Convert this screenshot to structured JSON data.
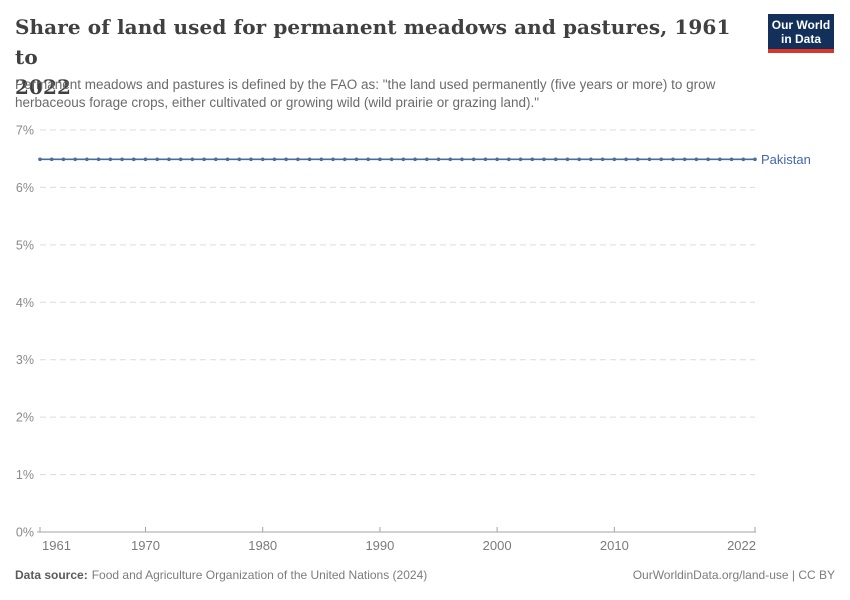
{
  "header": {
    "title_lines": [
      "Share of land used for permanent meadows and pastures, 1961 to",
      "2022"
    ],
    "subtitle_lines": [
      "Permanent meadows and pastures is defined by the FAO as: \"the land used permanently (five years or more) to grow",
      "herbaceous forage crops, either cultivated or growing wild (wild prairie or grazing land).\""
    ]
  },
  "logo": {
    "line1": "Our World",
    "line2": "in Data",
    "bg_color": "#12305a",
    "accent_color": "#dc3426"
  },
  "chart_data": {
    "type": "line",
    "title": "Share of land used for permanent meadows and pastures, 1961 to 2022",
    "xlabel": "",
    "ylabel": "",
    "ylim": [
      0,
      7
    ],
    "grid": "horizontal-dashed",
    "legend_position": "right-of-line-end",
    "x": [
      1961,
      1962,
      1963,
      1964,
      1965,
      1966,
      1967,
      1968,
      1969,
      1970,
      1971,
      1972,
      1973,
      1974,
      1975,
      1976,
      1977,
      1978,
      1979,
      1980,
      1981,
      1982,
      1983,
      1984,
      1985,
      1986,
      1987,
      1988,
      1989,
      1990,
      1991,
      1992,
      1993,
      1994,
      1995,
      1996,
      1997,
      1998,
      1999,
      2000,
      2001,
      2002,
      2003,
      2004,
      2005,
      2006,
      2007,
      2008,
      2009,
      2010,
      2011,
      2012,
      2013,
      2014,
      2015,
      2016,
      2017,
      2018,
      2019,
      2020,
      2021,
      2022
    ],
    "series": [
      {
        "name": "Pakistan",
        "color": "#4c6b9d",
        "label_color": "#4267aa",
        "values": [
          6.49,
          6.49,
          6.49,
          6.49,
          6.49,
          6.49,
          6.49,
          6.49,
          6.49,
          6.49,
          6.49,
          6.49,
          6.49,
          6.49,
          6.49,
          6.49,
          6.49,
          6.49,
          6.49,
          6.49,
          6.49,
          6.49,
          6.49,
          6.49,
          6.49,
          6.49,
          6.49,
          6.49,
          6.49,
          6.49,
          6.49,
          6.49,
          6.49,
          6.49,
          6.49,
          6.49,
          6.49,
          6.49,
          6.49,
          6.49,
          6.49,
          6.49,
          6.49,
          6.49,
          6.49,
          6.49,
          6.49,
          6.49,
          6.49,
          6.49,
          6.49,
          6.49,
          6.49,
          6.49,
          6.49,
          6.49,
          6.49,
          6.49,
          6.49,
          6.49,
          6.49,
          6.49
        ]
      }
    ],
    "yticks": {
      "values": [
        0,
        1,
        2,
        3,
        4,
        5,
        6,
        7
      ],
      "labels": [
        "0%",
        "1%",
        "2%",
        "3%",
        "4%",
        "5%",
        "6%",
        "7%"
      ]
    },
    "xticks": {
      "values": [
        1961,
        1970,
        1980,
        1990,
        2000,
        2010,
        2022
      ],
      "labels": [
        "1961",
        "1970",
        "1980",
        "1990",
        "2000",
        "2010",
        "2022"
      ]
    }
  },
  "footer": {
    "source_label": "Data source:",
    "source_text": "Food and Agriculture Organization of the United Nations (2024)",
    "credit": "OurWorldinData.org/land-use | CC BY"
  }
}
